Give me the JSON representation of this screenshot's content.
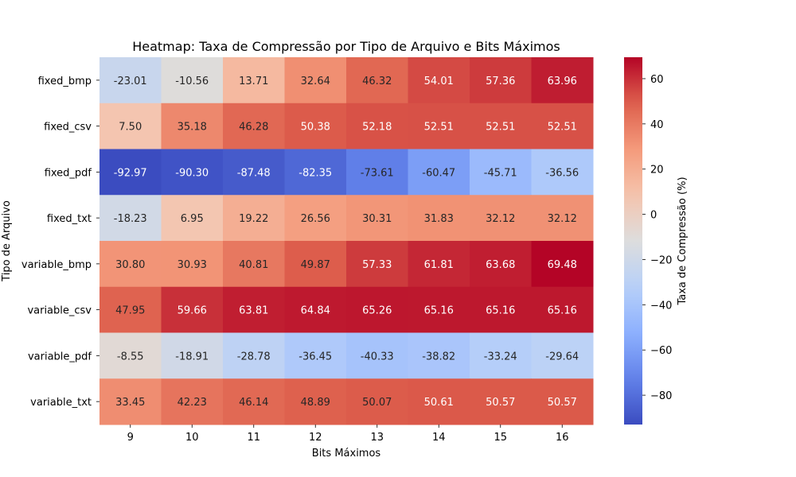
{
  "chart_data": {
    "type": "heatmap",
    "title": "Heatmap: Taxa de Compressão por Tipo de Arquivo e Bits Máximos",
    "xlabel": "Bits Máximos",
    "ylabel": "Tipo de Arquivo",
    "colorbar_label": "Taxa de Compressão (%)",
    "colormap": "coolwarm",
    "x": [
      "9",
      "10",
      "11",
      "12",
      "13",
      "14",
      "15",
      "16"
    ],
    "y": [
      "fixed_bmp",
      "fixed_csv",
      "fixed_pdf",
      "fixed_txt",
      "variable_bmp",
      "variable_csv",
      "variable_pdf",
      "variable_txt"
    ],
    "values": [
      [
        -23.01,
        -10.56,
        13.71,
        32.64,
        46.32,
        54.01,
        57.36,
        63.96
      ],
      [
        7.5,
        35.18,
        46.28,
        50.38,
        52.18,
        52.51,
        52.51,
        52.51
      ],
      [
        -92.97,
        -90.3,
        -87.48,
        -82.35,
        -73.61,
        -60.47,
        -45.71,
        -36.56
      ],
      [
        -18.23,
        6.95,
        19.22,
        26.56,
        30.31,
        31.83,
        32.12,
        32.12
      ],
      [
        30.8,
        30.93,
        40.81,
        49.87,
        57.33,
        61.81,
        63.68,
        69.48
      ],
      [
        47.95,
        59.66,
        63.81,
        64.84,
        65.26,
        65.16,
        65.16,
        65.16
      ],
      [
        -8.55,
        -18.91,
        -28.78,
        -36.45,
        -40.33,
        -38.82,
        -33.24,
        -29.64
      ],
      [
        33.45,
        42.23,
        46.14,
        48.89,
        50.07,
        50.61,
        50.57,
        50.57
      ]
    ],
    "value_format": "2 decimals",
    "colorbar_ticks": [
      -80,
      -60,
      -40,
      -20,
      0,
      20,
      40,
      60
    ],
    "colorbar_tick_labels": [
      "−80",
      "−60",
      "−40",
      "−20",
      "0",
      "20",
      "40",
      "60"
    ],
    "colorbar_range": [
      -92.97,
      69.48
    ]
  }
}
